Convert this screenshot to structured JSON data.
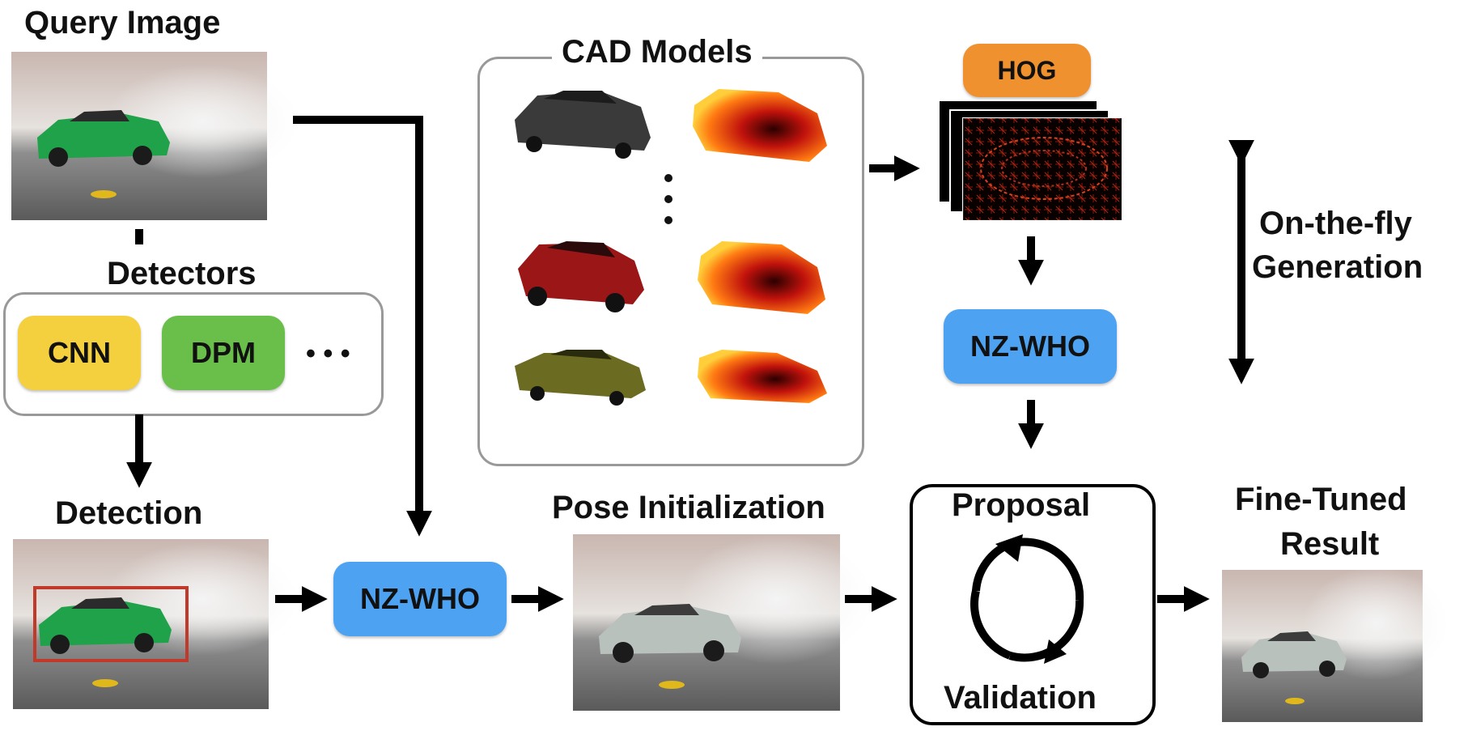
{
  "labels": {
    "query_image": "Query Image",
    "detectors": "Detectors",
    "detection": "Detection",
    "cad_models": "CAD Models",
    "pose_initialization": "Pose Initialization",
    "on_the_fly_line1": "On-the-fly",
    "on_the_fly_line2": "Generation",
    "proposal": "Proposal",
    "validation": "Validation",
    "fine_tuned_line1": "Fine-Tuned",
    "fine_tuned_line2": "Result"
  },
  "detectors": [
    {
      "label": "CNN",
      "color": "#f4d03f"
    },
    {
      "label": "DPM",
      "color": "#6abf4b"
    }
  ],
  "detectors_more": "• • •",
  "features": {
    "hog": "HOG",
    "hog_color": "#f0912f",
    "nz_who_top": "NZ-WHO",
    "nz_who_bottom": "NZ-WHO",
    "nz_who_color": "#4da3f2"
  },
  "colors": {
    "detection_box": "#c0392b",
    "arrow": "#000000",
    "box_border": "#999999"
  }
}
